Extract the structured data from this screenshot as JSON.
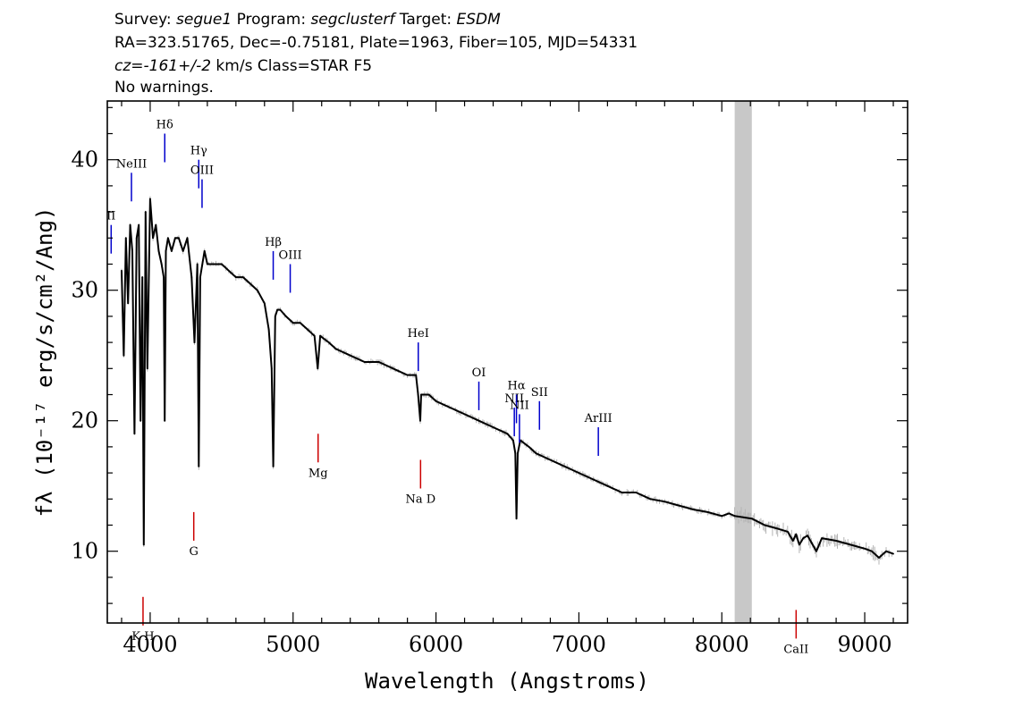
{
  "header": {
    "line1": {
      "survey_label": "Survey: ",
      "survey": "segue1",
      "program_label": " Program: ",
      "program": "segclusterf",
      "target_label": " Target: ",
      "target": "ESDM"
    },
    "line2": "RA=323.51765, Dec=-0.75181, Plate=1963, Fiber=105, MJD=54331",
    "line3": {
      "cz_label": "cz=",
      "cz_value": "-161+/-2",
      "cz_units": " km/s Class=STAR F5"
    },
    "line4": "No warnings."
  },
  "chart_data": {
    "type": "line",
    "xlabel": "Wavelength (Angstroms)",
    "ylabel": "fλ (10⁻¹⁷ erg/s/cm²/Ang)",
    "xlim": [
      3700,
      9300
    ],
    "ylim": [
      4.5,
      44.5
    ],
    "x_ticks": [
      4000,
      5000,
      6000,
      7000,
      8000,
      9000
    ],
    "y_ticks": [
      10,
      20,
      30,
      40
    ],
    "masked_region": [
      8090,
      8210
    ],
    "masked_color": "#c8c8c8",
    "series": [
      {
        "style": "flux",
        "color": "#000000",
        "x": [
          3800,
          3815,
          3830,
          3845,
          3860,
          3875,
          3890,
          3905,
          3920,
          3933,
          3945,
          3955,
          3968,
          3980,
          4000,
          4020,
          4040,
          4060,
          4080,
          4095,
          4102,
          4110,
          4125,
          4150,
          4175,
          4200,
          4230,
          4260,
          4290,
          4310,
          4330,
          4340,
          4350,
          4365,
          4380,
          4400,
          4450,
          4500,
          4550,
          4600,
          4650,
          4700,
          4750,
          4800,
          4830,
          4850,
          4861,
          4875,
          4890,
          4910,
          4950,
          5000,
          5050,
          5100,
          5150,
          5172,
          5190,
          5250,
          5300,
          5400,
          5500,
          5600,
          5700,
          5800,
          5860,
          5875,
          5890,
          5896,
          5910,
          5950,
          6000,
          6100,
          6200,
          6300,
          6400,
          6500,
          6540,
          6555,
          6563,
          6572,
          6590,
          6650,
          6700,
          6800,
          6900,
          7000,
          7100,
          7200,
          7300,
          7400,
          7500,
          7600,
          7700,
          7800,
          7900,
          8000,
          8050,
          8090,
          8210,
          8300,
          8400,
          8460,
          8498,
          8520,
          8542,
          8570,
          8600,
          8662,
          8700,
          8800,
          8900,
          9000,
          9050,
          9100,
          9150,
          9200
        ],
        "y": [
          31.5,
          25,
          34,
          29,
          35,
          33,
          19,
          34,
          35,
          20,
          31,
          10.5,
          36,
          24,
          37,
          34,
          35,
          33,
          32,
          31,
          20,
          33,
          34,
          33,
          34,
          34,
          33,
          34,
          31,
          26,
          32,
          16.5,
          31,
          32,
          33,
          32,
          32,
          32,
          31.5,
          31,
          31,
          30.5,
          30,
          29,
          27,
          24,
          16.5,
          28,
          28.5,
          28.5,
          28,
          27.5,
          27.5,
          27,
          26.5,
          24,
          26.5,
          26,
          25.5,
          25,
          24.5,
          24.5,
          24,
          23.5,
          23.5,
          22,
          20,
          22,
          22,
          22,
          21.5,
          21,
          20.5,
          20,
          19.5,
          19,
          18.5,
          17.5,
          12.5,
          17.5,
          18.5,
          18,
          17.5,
          17,
          16.5,
          16,
          15.5,
          15,
          14.5,
          14.5,
          14,
          13.8,
          13.5,
          13.2,
          13,
          12.7,
          12.9,
          12.7,
          12.5,
          12,
          11.7,
          11.5,
          10.8,
          11.3,
          10.5,
          11,
          11.2,
          10,
          11,
          10.8,
          10.5,
          10.2,
          10,
          9.5,
          10,
          9.8
        ]
      }
    ],
    "line_labels": [
      {
        "text": "II",
        "x": 3727,
        "color": "#0000cc",
        "y": 35
      },
      {
        "text": "NeIII",
        "x": 3869,
        "color": "#0000cc",
        "y": 39
      },
      {
        "text": "Hδ",
        "x": 4102,
        "color": "#0000cc",
        "y": 42
      },
      {
        "text": "Hγ",
        "x": 4340,
        "color": "#0000cc",
        "y": 40
      },
      {
        "text": "OIII",
        "x": 4363,
        "color": "#0000cc",
        "y": 38.5
      },
      {
        "text": "Hβ",
        "x": 4861,
        "color": "#0000cc",
        "y": 33
      },
      {
        "text": "OIII",
        "x": 4980,
        "color": "#0000cc",
        "y": 32
      },
      {
        "text": "HeI",
        "x": 5876,
        "color": "#0000cc",
        "y": 26
      },
      {
        "text": "OI",
        "x": 6300,
        "color": "#0000cc",
        "y": 23
      },
      {
        "text": "NII",
        "x": 6548,
        "color": "#0000cc",
        "y": 21
      },
      {
        "text": "Hα",
        "x": 6563,
        "color": "#0000cc",
        "y": 22
      },
      {
        "text": "NII",
        "x": 6584,
        "color": "#0000cc",
        "y": 20.5
      },
      {
        "text": "SII",
        "x": 6724,
        "color": "#0000cc",
        "y": 21.5
      },
      {
        "text": "ArIII",
        "x": 7136,
        "color": "#0000cc",
        "y": 19.5
      },
      {
        "text": "G",
        "x": 4305,
        "color": "#cc0000",
        "y": 13
      },
      {
        "text": "Mg",
        "x": 5175,
        "color": "#cc0000",
        "y": 19
      },
      {
        "text": "Na D",
        "x": 5892,
        "color": "#cc0000",
        "y": 17
      },
      {
        "text": "K H",
        "x": 3950,
        "color": "#cc0000",
        "y": 6.5
      },
      {
        "text": "CaII",
        "x": 8520,
        "color": "#cc0000",
        "y": 5.5
      }
    ]
  }
}
